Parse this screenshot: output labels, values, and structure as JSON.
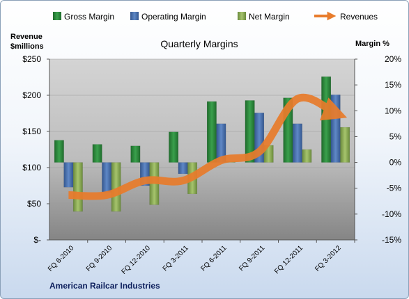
{
  "chart_data": {
    "type": "bar",
    "title": "Quarterly Margins",
    "company": "American Railcar Industries",
    "left_axis_title_line1": "Revenue",
    "left_axis_title_line2": "$millions",
    "right_axis_title": "Margin %",
    "categories": [
      "FQ 6-2010",
      "FQ 9-2010",
      "FQ 12-2010",
      "FQ 3-2011",
      "FQ 6-2011",
      "FQ 9-2011",
      "FQ 12-2011",
      "FQ 3-2012"
    ],
    "legend": [
      "Gross Margin",
      "Operating Margin",
      "Net Margin",
      "Revenues"
    ],
    "left_axis": {
      "range": [
        0,
        250
      ],
      "ticks": [
        0,
        50,
        100,
        150,
        200,
        250
      ],
      "tick_labels": [
        "$-",
        "$50",
        "$100",
        "$150",
        "$200",
        "$250"
      ]
    },
    "right_axis": {
      "range": [
        -15,
        20
      ],
      "ticks": [
        -15,
        -10,
        -5,
        0,
        5,
        10,
        15,
        20
      ],
      "tick_labels": [
        "-15%",
        "-10%",
        "-5%",
        "0%",
        "5%",
        "10%",
        "15%",
        "20%"
      ]
    },
    "series": [
      {
        "name": "Gross Margin",
        "axis": "right",
        "kind": "bar",
        "color": "#2e8b3e",
        "values": [
          4.3,
          3.5,
          3.2,
          5.9,
          11.8,
          12.0,
          12.5,
          16.6
        ]
      },
      {
        "name": "Operating Margin",
        "axis": "right",
        "kind": "bar",
        "color": "#4a73b0",
        "values": [
          -4.8,
          -5.8,
          -4.5,
          -2.2,
          7.5,
          9.6,
          7.5,
          13.1
        ]
      },
      {
        "name": "Net Margin",
        "axis": "right",
        "kind": "bar",
        "color": "#8fb05a",
        "values": [
          -9.5,
          -9.5,
          -8.2,
          -6.1,
          0.2,
          3.3,
          2.5,
          6.8
        ]
      },
      {
        "name": "Revenues",
        "axis": "left",
        "kind": "line",
        "color": "#e87c2c",
        "values": [
          62,
          62,
          82,
          82,
          110,
          122,
          195,
          175
        ]
      }
    ],
    "grid": true,
    "legend_position": "top"
  }
}
